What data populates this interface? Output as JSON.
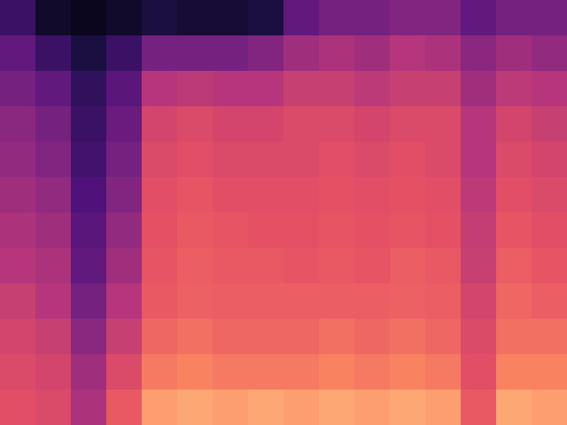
{
  "chart_data": {
    "type": "heatmap",
    "color": "magma",
    "tick_labels": false,
    "grid": false,
    "xlim": [
      0,
      16
    ],
    "ylim": [
      0,
      12
    ],
    "zlim": [
      0,
      1
    ],
    "z": [
      [
        0.2,
        0.08,
        0.05,
        0.08,
        0.12,
        0.1,
        0.1,
        0.12,
        0.3,
        0.35,
        0.35,
        0.38,
        0.38,
        0.3,
        0.35,
        0.35
      ],
      [
        0.3,
        0.2,
        0.12,
        0.2,
        0.35,
        0.35,
        0.35,
        0.38,
        0.45,
        0.48,
        0.45,
        0.5,
        0.48,
        0.4,
        0.45,
        0.42
      ],
      [
        0.35,
        0.3,
        0.18,
        0.28,
        0.5,
        0.52,
        0.5,
        0.5,
        0.55,
        0.55,
        0.52,
        0.55,
        0.55,
        0.45,
        0.52,
        0.5
      ],
      [
        0.4,
        0.35,
        0.2,
        0.32,
        0.58,
        0.6,
        0.58,
        0.58,
        0.6,
        0.6,
        0.58,
        0.6,
        0.6,
        0.5,
        0.58,
        0.55
      ],
      [
        0.42,
        0.38,
        0.22,
        0.35,
        0.6,
        0.62,
        0.6,
        0.6,
        0.6,
        0.62,
        0.6,
        0.62,
        0.6,
        0.5,
        0.6,
        0.58
      ],
      [
        0.45,
        0.42,
        0.25,
        0.38,
        0.62,
        0.64,
        0.62,
        0.62,
        0.62,
        0.63,
        0.62,
        0.63,
        0.62,
        0.52,
        0.62,
        0.6
      ],
      [
        0.48,
        0.45,
        0.28,
        0.42,
        0.63,
        0.65,
        0.64,
        0.63,
        0.63,
        0.64,
        0.63,
        0.64,
        0.63,
        0.54,
        0.64,
        0.62
      ],
      [
        0.5,
        0.48,
        0.3,
        0.45,
        0.64,
        0.66,
        0.65,
        0.65,
        0.64,
        0.65,
        0.64,
        0.66,
        0.65,
        0.55,
        0.66,
        0.64
      ],
      [
        0.55,
        0.5,
        0.35,
        0.5,
        0.65,
        0.67,
        0.66,
        0.66,
        0.66,
        0.66,
        0.66,
        0.67,
        0.66,
        0.58,
        0.68,
        0.66
      ],
      [
        0.58,
        0.55,
        0.4,
        0.55,
        0.68,
        0.7,
        0.68,
        0.68,
        0.68,
        0.7,
        0.68,
        0.7,
        0.68,
        0.6,
        0.7,
        0.7
      ],
      [
        0.6,
        0.58,
        0.45,
        0.6,
        0.72,
        0.74,
        0.72,
        0.72,
        0.72,
        0.74,
        0.72,
        0.74,
        0.72,
        0.62,
        0.74,
        0.74
      ],
      [
        0.62,
        0.6,
        0.48,
        0.65,
        0.8,
        0.82,
        0.8,
        0.82,
        0.8,
        0.82,
        0.8,
        0.82,
        0.8,
        0.65,
        0.82,
        0.8
      ]
    ]
  }
}
